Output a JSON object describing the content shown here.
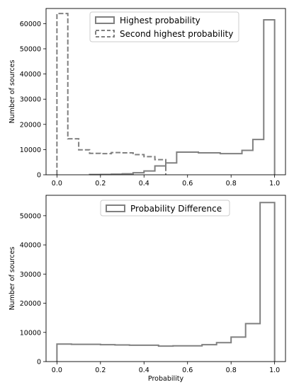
{
  "chart_data": [
    {
      "type": "step-histogram",
      "xlabel": "",
      "ylabel": "Number of sources",
      "xlim": [
        -0.05,
        1.05
      ],
      "ylim": [
        0,
        66000
      ],
      "x_ticks": [
        "0.0",
        "0.2",
        "0.4",
        "0.6",
        "0.8",
        "1.0"
      ],
      "x_tick_values": [
        0,
        0.2,
        0.4,
        0.6,
        0.8,
        1.0
      ],
      "y_ticks": [
        "0",
        "10000",
        "20000",
        "30000",
        "40000",
        "50000",
        "60000"
      ],
      "y_tick_values": [
        0,
        10000,
        20000,
        30000,
        40000,
        50000,
        60000
      ],
      "legend_position": "top-center",
      "series": [
        {
          "name": "Highest probability",
          "style": "solid",
          "color": "#808080",
          "bin_edges": [
            0.15,
            0.2,
            0.25,
            0.3,
            0.35,
            0.4,
            0.45,
            0.5,
            0.55,
            0.6,
            0.65,
            0.7,
            0.75,
            0.8,
            0.85,
            0.9,
            0.95,
            1.0
          ],
          "values": [
            100,
            150,
            250,
            400,
            800,
            1500,
            3500,
            4700,
            9000,
            9000,
            8700,
            8700,
            8400,
            8400,
            9700,
            14000,
            61500
          ]
        },
        {
          "name": "Second highest probability",
          "style": "dashed",
          "color": "#808080",
          "bin_edges": [
            0.0,
            0.05,
            0.1,
            0.15,
            0.2,
            0.25,
            0.3,
            0.35,
            0.4,
            0.45,
            0.5
          ],
          "values": [
            64000,
            14300,
            9900,
            8500,
            8400,
            8800,
            8700,
            8000,
            7200,
            6000
          ]
        }
      ]
    },
    {
      "type": "step-histogram",
      "xlabel": "Probability",
      "ylabel": "Number of sources",
      "xlim": [
        -0.05,
        1.05
      ],
      "ylim": [
        0,
        57000
      ],
      "x_ticks": [
        "0.0",
        "0.2",
        "0.4",
        "0.6",
        "0.8",
        "1.0"
      ],
      "x_tick_values": [
        0,
        0.2,
        0.4,
        0.6,
        0.8,
        1.0
      ],
      "y_ticks": [
        "0",
        "10000",
        "20000",
        "30000",
        "40000",
        "50000"
      ],
      "y_tick_values": [
        0,
        10000,
        20000,
        30000,
        40000,
        50000
      ],
      "legend_position": "top-center",
      "series": [
        {
          "name": "Probability Difference",
          "style": "solid",
          "color": "#808080",
          "bin_edges": [
            0.0,
            0.0667,
            0.1333,
            0.2,
            0.2667,
            0.3333,
            0.4,
            0.4667,
            0.5333,
            0.6,
            0.6667,
            0.7333,
            0.8,
            0.8667,
            0.9333,
            1.0
          ],
          "values": [
            6000,
            5900,
            5900,
            5800,
            5700,
            5600,
            5600,
            5300,
            5400,
            5400,
            5800,
            6500,
            8400,
            13000,
            54500
          ]
        }
      ]
    }
  ]
}
